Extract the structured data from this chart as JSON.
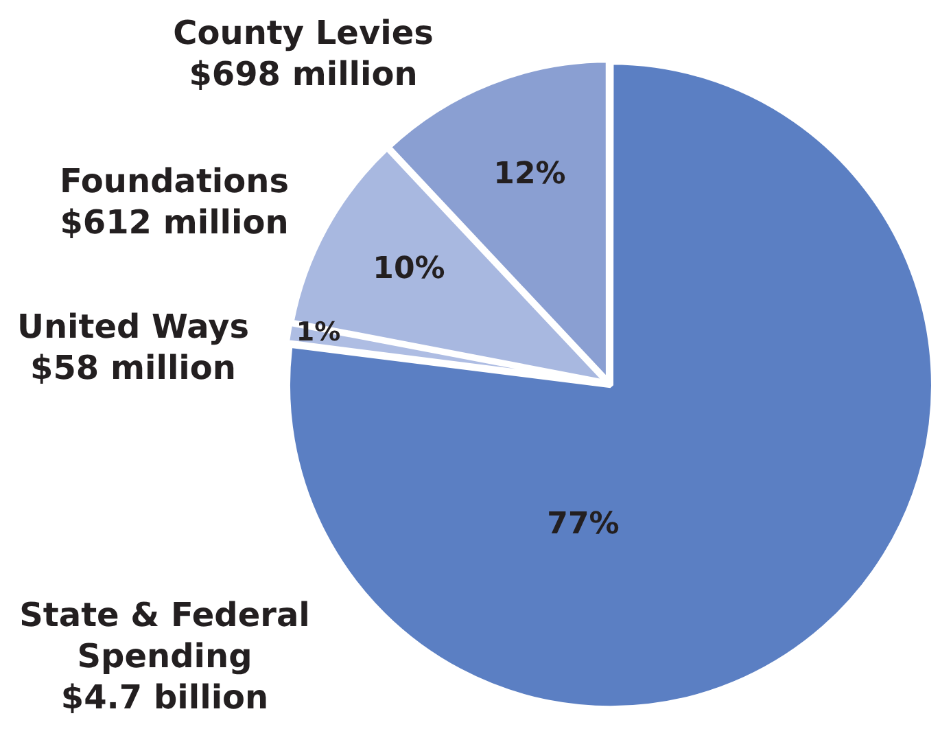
{
  "chart_data": {
    "type": "pie",
    "categories": [
      "State & Federal\nSpending\n$4.7 billion",
      "United Ways\n$58 million",
      "Foundations\n$612 million",
      "County Levies\n$698 million"
    ],
    "values": [
      77,
      1,
      10,
      12
    ],
    "colors": [
      "#5b7fc3",
      "#aebde3",
      "#a8b8e0",
      "#8a9fd2"
    ],
    "value_labels": [
      "77%",
      "1%",
      "10%",
      "12%"
    ],
    "legend": false
  }
}
